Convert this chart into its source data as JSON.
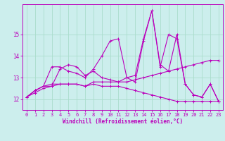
{
  "background_color": "#cceeed",
  "grid_color": "#aaddcc",
  "line_color": "#bb00bb",
  "xlabel": "Windchill (Refroidissement éolien,°C)",
  "x_ticks": [
    0,
    1,
    2,
    3,
    4,
    5,
    6,
    7,
    8,
    9,
    10,
    11,
    12,
    13,
    14,
    15,
    16,
    17,
    18,
    19,
    20,
    21,
    22,
    23
  ],
  "ylim": [
    11.5,
    16.4
  ],
  "xlim": [
    -0.5,
    23.5
  ],
  "y_ticks": [
    12,
    13,
    14,
    15
  ],
  "series": [
    [
      12.1,
      12.4,
      12.6,
      12.6,
      13.4,
      13.6,
      13.5,
      13.1,
      13.3,
      13.0,
      12.9,
      12.8,
      13.0,
      12.8,
      14.7,
      16.1,
      13.6,
      13.3,
      15.0,
      12.7,
      12.2,
      12.1,
      12.7,
      11.9
    ],
    [
      12.1,
      12.4,
      12.6,
      12.7,
      12.7,
      12.7,
      12.7,
      12.6,
      12.8,
      12.8,
      12.8,
      12.8,
      12.8,
      12.9,
      13.0,
      13.1,
      13.2,
      13.3,
      13.4,
      13.5,
      13.6,
      13.7,
      13.8,
      13.8
    ],
    [
      12.1,
      12.3,
      12.5,
      12.6,
      12.7,
      12.7,
      12.7,
      12.6,
      12.7,
      12.6,
      12.6,
      12.6,
      12.5,
      12.4,
      12.3,
      12.2,
      12.1,
      12.0,
      11.9,
      11.9,
      11.9,
      11.9,
      11.9,
      11.9
    ],
    [
      12.1,
      12.4,
      12.6,
      13.5,
      13.5,
      13.3,
      13.2,
      13.0,
      13.4,
      14.0,
      14.7,
      14.8,
      13.0,
      13.1,
      14.8,
      16.1,
      13.5,
      15.0,
      14.8,
      12.7,
      12.2,
      12.1,
      12.7,
      11.9
    ]
  ],
  "marker": "+",
  "markersize": 3,
  "markeredgewidth": 0.7,
  "linewidth": 0.8,
  "xlabel_fontsize": 5.5,
  "tick_fontsize": 5.0
}
